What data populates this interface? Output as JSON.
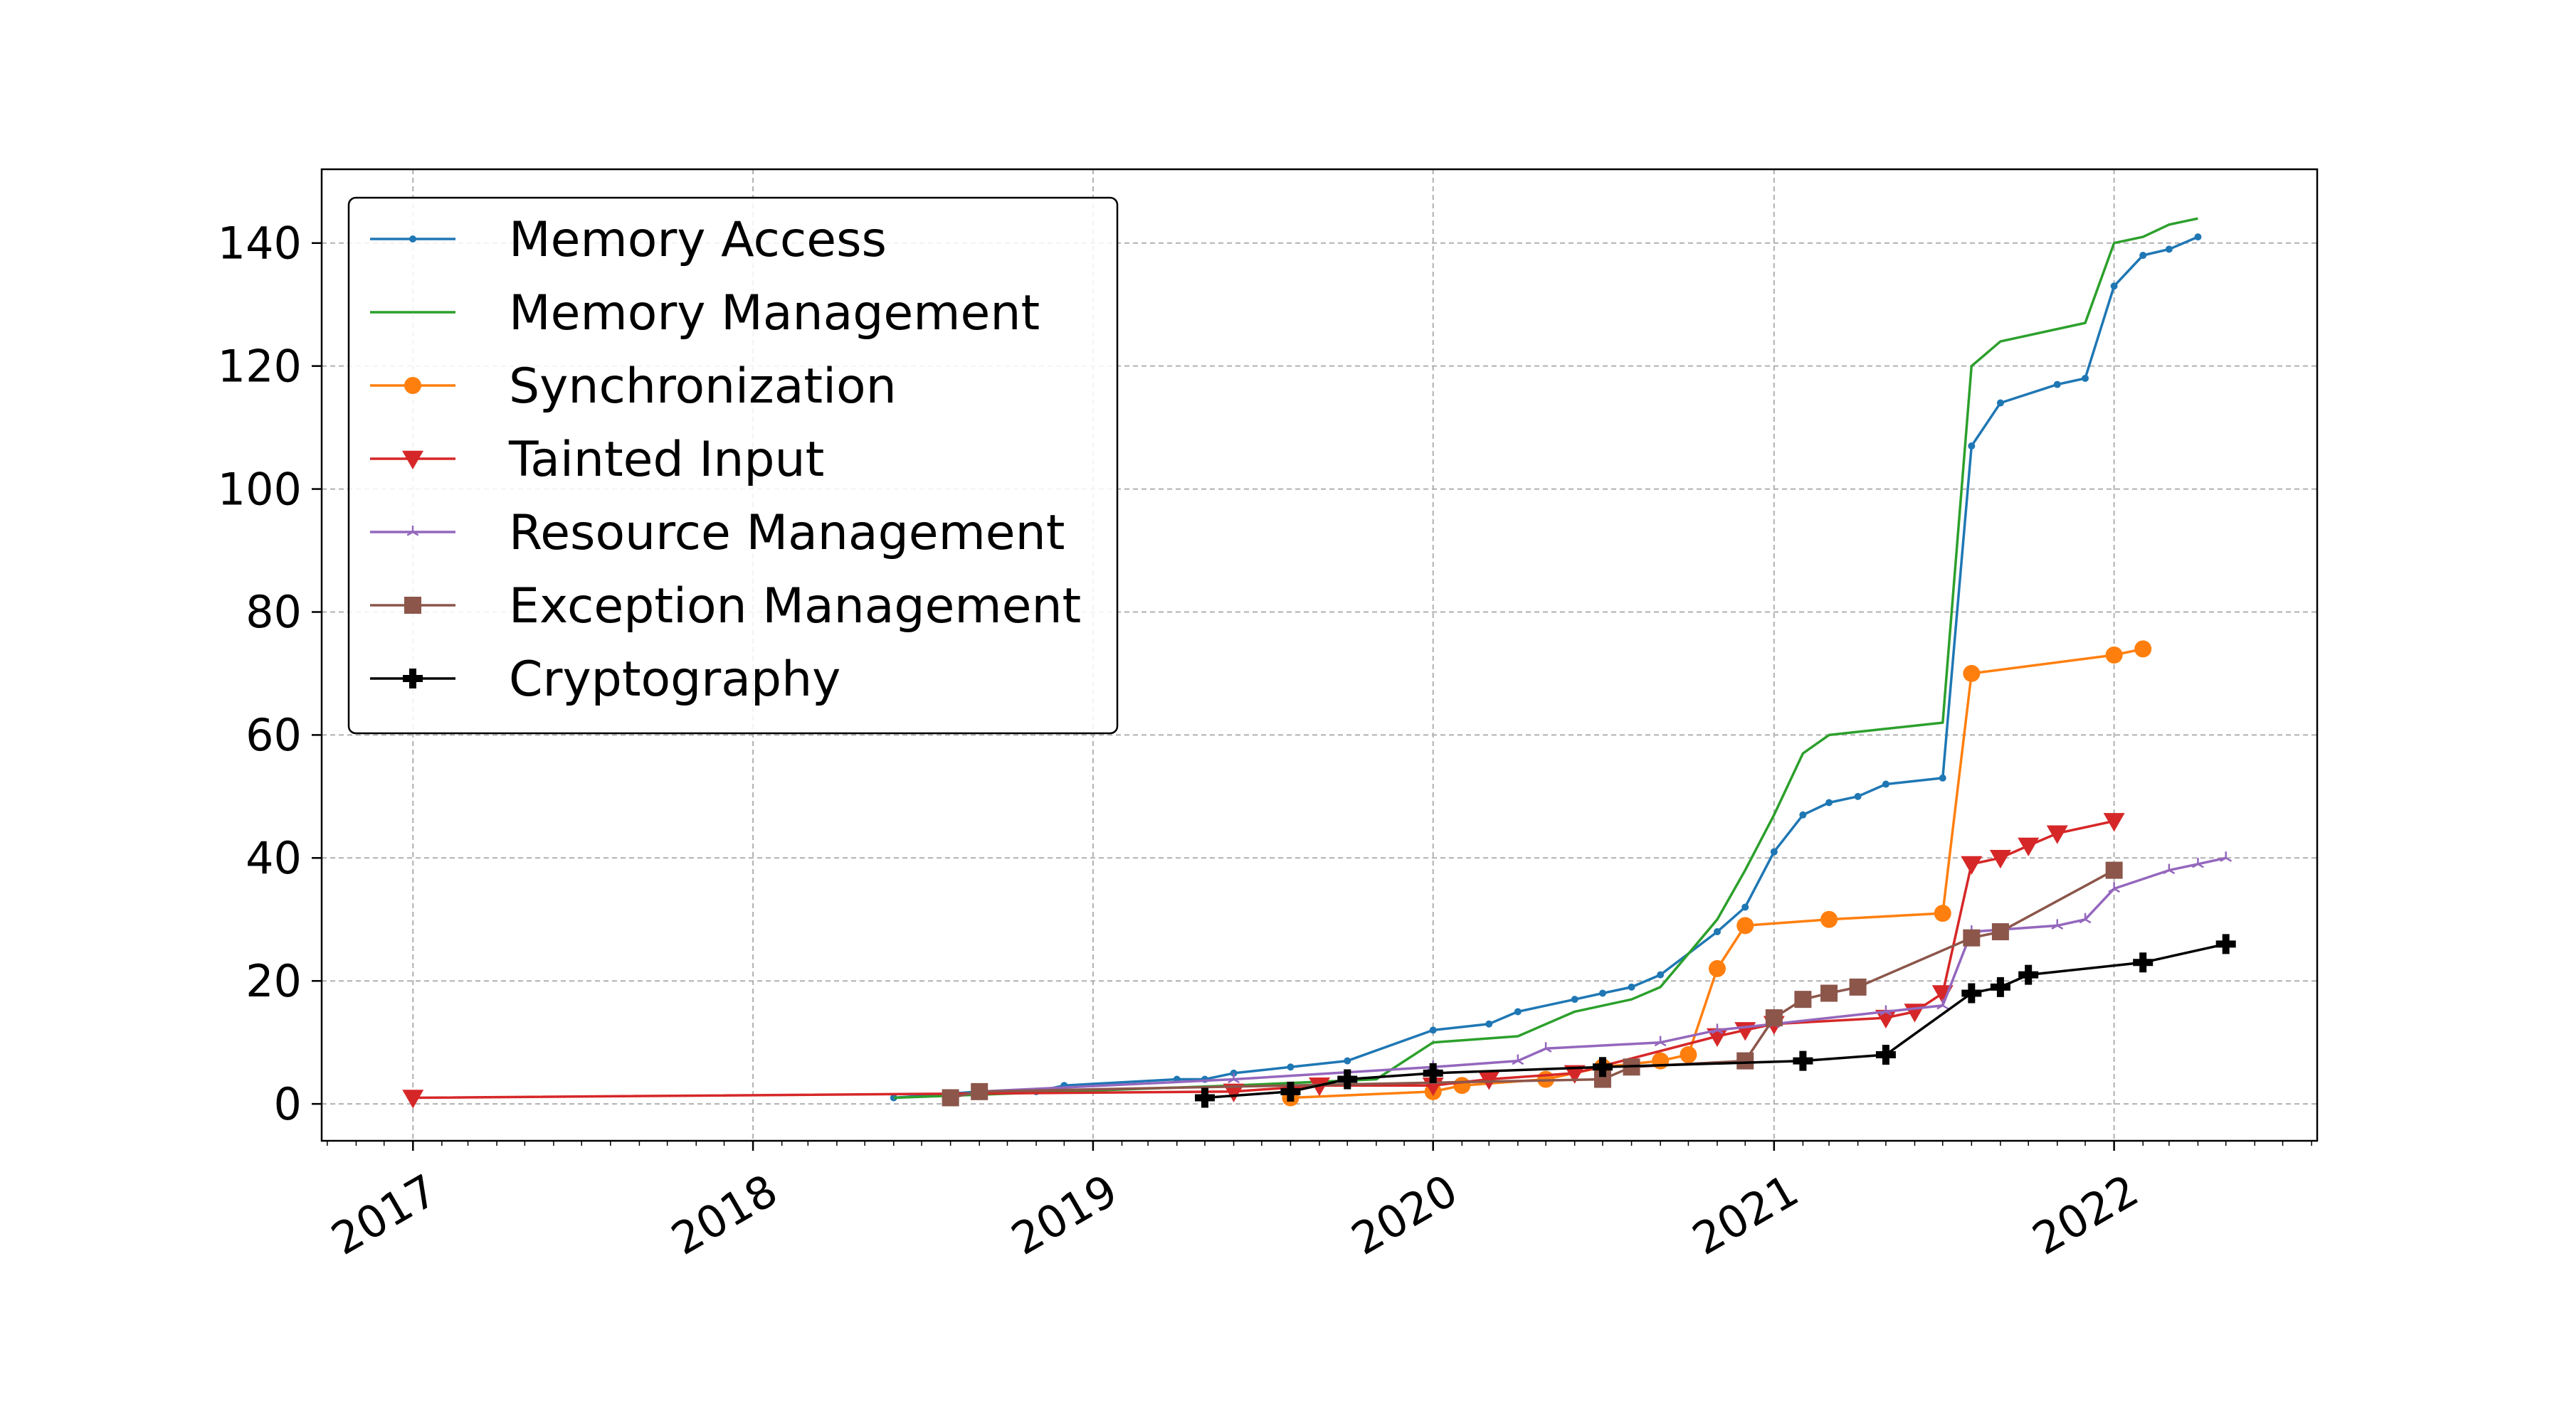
{
  "chart_data": {
    "type": "line",
    "title": "",
    "xlabel": "",
    "ylabel": "",
    "x_axis": {
      "kind": "date",
      "range": [
        "2016-09-25",
        "2022-08-07"
      ],
      "ticks": [
        "2017-01-01",
        "2018-01-01",
        "2019-01-01",
        "2020-01-01",
        "2021-01-01",
        "2022-01-01"
      ],
      "tick_labels": [
        "2017",
        "2018",
        "2019",
        "2020",
        "2021",
        "2022"
      ],
      "minor_ticks": "monthly",
      "tick_label_rotation": 30
    },
    "y_axis": {
      "range": [
        -6,
        152
      ],
      "ticks": [
        0,
        20,
        40,
        60,
        80,
        100,
        120,
        140
      ],
      "tick_labels": [
        "0",
        "20",
        "40",
        "60",
        "80",
        "100",
        "120",
        "140"
      ]
    },
    "grid": true,
    "legend": {
      "placement": "top-left"
    },
    "series": [
      {
        "name": "Memory Access",
        "color": "#1f77b4",
        "marker": "point",
        "points": [
          [
            "2018-06-01",
            1
          ],
          [
            "2018-09-01",
            2
          ],
          [
            "2018-11-01",
            2
          ],
          [
            "2018-12-01",
            3
          ],
          [
            "2019-04-01",
            4
          ],
          [
            "2019-05-01",
            4
          ],
          [
            "2019-06-01",
            5
          ],
          [
            "2019-08-01",
            6
          ],
          [
            "2019-10-01",
            7
          ],
          [
            "2020-01-01",
            12
          ],
          [
            "2020-03-01",
            13
          ],
          [
            "2020-04-01",
            15
          ],
          [
            "2020-06-01",
            17
          ],
          [
            "2020-07-01",
            18
          ],
          [
            "2020-08-01",
            19
          ],
          [
            "2020-09-01",
            21
          ],
          [
            "2020-11-01",
            28
          ],
          [
            "2020-12-01",
            32
          ],
          [
            "2021-01-01",
            41
          ],
          [
            "2021-02-01",
            47
          ],
          [
            "2021-03-01",
            49
          ],
          [
            "2021-04-01",
            50
          ],
          [
            "2021-05-01",
            52
          ],
          [
            "2021-07-01",
            53
          ],
          [
            "2021-08-01",
            107
          ],
          [
            "2021-09-01",
            114
          ],
          [
            "2021-11-01",
            117
          ],
          [
            "2021-12-01",
            118
          ],
          [
            "2022-01-01",
            133
          ],
          [
            "2022-02-01",
            138
          ],
          [
            "2022-03-01",
            139
          ],
          [
            "2022-04-01",
            141
          ]
        ]
      },
      {
        "name": "Memory Management",
        "color": "#2ca02c",
        "marker": "none",
        "points": [
          [
            "2018-06-01",
            1
          ],
          [
            "2019-06-01",
            3
          ],
          [
            "2019-11-01",
            4
          ],
          [
            "2020-01-01",
            10
          ],
          [
            "2020-04-01",
            11
          ],
          [
            "2020-06-01",
            15
          ],
          [
            "2020-08-01",
            17
          ],
          [
            "2020-09-01",
            19
          ],
          [
            "2020-11-01",
            30
          ],
          [
            "2020-12-01",
            38
          ],
          [
            "2021-01-01",
            47
          ],
          [
            "2021-02-01",
            57
          ],
          [
            "2021-03-01",
            60
          ],
          [
            "2021-07-01",
            62
          ],
          [
            "2021-08-01",
            120
          ],
          [
            "2021-09-01",
            124
          ],
          [
            "2021-12-01",
            127
          ],
          [
            "2022-01-01",
            140
          ],
          [
            "2022-02-01",
            141
          ],
          [
            "2022-03-01",
            143
          ],
          [
            "2022-04-01",
            144
          ]
        ]
      },
      {
        "name": "Synchronization",
        "color": "#ff7f0e",
        "marker": "circle",
        "points": [
          [
            "2019-08-01",
            1
          ],
          [
            "2020-01-01",
            2
          ],
          [
            "2020-02-01",
            3
          ],
          [
            "2020-05-01",
            4
          ],
          [
            "2020-07-01",
            6
          ],
          [
            "2020-09-01",
            7
          ],
          [
            "2020-10-01",
            8
          ],
          [
            "2020-11-01",
            22
          ],
          [
            "2020-12-01",
            29
          ],
          [
            "2021-03-01",
            30
          ],
          [
            "2021-07-01",
            31
          ],
          [
            "2021-08-01",
            70
          ],
          [
            "2022-01-01",
            73
          ],
          [
            "2022-02-01",
            74
          ]
        ]
      },
      {
        "name": "Tainted Input",
        "color": "#d62728",
        "marker": "triangle-down",
        "points": [
          [
            "2017-01-01",
            1
          ],
          [
            "2019-06-01",
            2
          ],
          [
            "2019-09-01",
            3
          ],
          [
            "2020-01-01",
            3
          ],
          [
            "2020-03-01",
            4
          ],
          [
            "2020-06-01",
            5
          ],
          [
            "2020-11-01",
            11
          ],
          [
            "2020-12-01",
            12
          ],
          [
            "2021-01-01",
            13
          ],
          [
            "2021-05-01",
            14
          ],
          [
            "2021-06-01",
            15
          ],
          [
            "2021-07-01",
            18
          ],
          [
            "2021-08-01",
            39
          ],
          [
            "2021-09-01",
            40
          ],
          [
            "2021-10-01",
            42
          ],
          [
            "2021-11-01",
            44
          ],
          [
            "2022-01-01",
            46
          ]
        ]
      },
      {
        "name": "Resource Management",
        "color": "#9467bd",
        "marker": "tri",
        "points": [
          [
            "2018-09-01",
            2
          ],
          [
            "2019-06-01",
            4
          ],
          [
            "2020-01-01",
            6
          ],
          [
            "2020-04-01",
            7
          ],
          [
            "2020-05-01",
            9
          ],
          [
            "2020-09-01",
            10
          ],
          [
            "2020-11-01",
            12
          ],
          [
            "2021-01-01",
            13
          ],
          [
            "2021-05-01",
            15
          ],
          [
            "2021-07-01",
            16
          ],
          [
            "2021-08-01",
            28
          ],
          [
            "2021-11-01",
            29
          ],
          [
            "2021-12-01",
            30
          ],
          [
            "2022-01-01",
            35
          ],
          [
            "2022-03-01",
            38
          ],
          [
            "2022-04-01",
            39
          ],
          [
            "2022-05-01",
            40
          ]
        ]
      },
      {
        "name": "Exception Management",
        "color": "#8c564b",
        "marker": "square",
        "points": [
          [
            "2018-08-01",
            1
          ],
          [
            "2018-09-01",
            2
          ],
          [
            "2020-07-01",
            4
          ],
          [
            "2020-08-01",
            6
          ],
          [
            "2020-12-01",
            7
          ],
          [
            "2021-01-01",
            14
          ],
          [
            "2021-02-01",
            17
          ],
          [
            "2021-03-01",
            18
          ],
          [
            "2021-04-01",
            19
          ],
          [
            "2021-08-01",
            27
          ],
          [
            "2021-09-01",
            28
          ],
          [
            "2022-01-01",
            38
          ]
        ]
      },
      {
        "name": "Cryptography",
        "color": "#000000",
        "marker": "plus-filled",
        "points": [
          [
            "2019-05-01",
            1
          ],
          [
            "2019-08-01",
            2
          ],
          [
            "2019-10-01",
            4
          ],
          [
            "2020-01-01",
            5
          ],
          [
            "2020-07-01",
            6
          ],
          [
            "2021-02-01",
            7
          ],
          [
            "2021-05-01",
            8
          ],
          [
            "2021-08-01",
            18
          ],
          [
            "2021-09-01",
            19
          ],
          [
            "2021-10-01",
            21
          ],
          [
            "2022-02-01",
            23
          ],
          [
            "2022-05-01",
            26
          ]
        ]
      }
    ]
  }
}
